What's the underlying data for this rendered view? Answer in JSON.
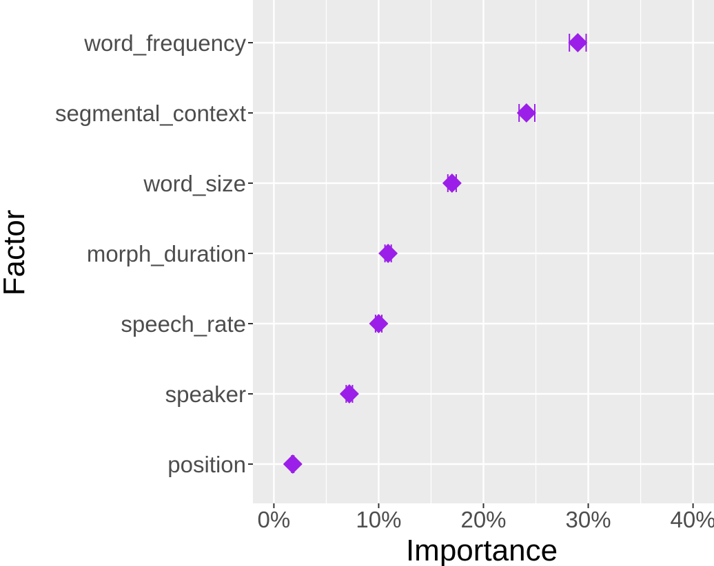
{
  "chart_data": {
    "type": "scatter",
    "title": "",
    "xlabel": "Importance",
    "ylabel": "Factor",
    "xlim": [
      -0.02,
      0.42
    ],
    "x_ticks": [
      0.0,
      0.1,
      0.2,
      0.3,
      0.4
    ],
    "x_tick_labels": [
      "0%",
      "10%",
      "20%",
      "30%",
      "40%"
    ],
    "categories": [
      "word_frequency",
      "segmental_context",
      "word_size",
      "morph_duration",
      "speech_rate",
      "speaker",
      "position"
    ],
    "values": [
      0.29,
      0.241,
      0.17,
      0.109,
      0.1,
      0.072,
      0.018
    ],
    "error_low": [
      0.282,
      0.234,
      0.166,
      0.106,
      0.097,
      0.069,
      0.017
    ],
    "error_high": [
      0.298,
      0.249,
      0.174,
      0.112,
      0.103,
      0.075,
      0.019
    ],
    "marker": "diamond",
    "marker_color": "#9b1fe8",
    "grid": true,
    "panel_color": "#ebebeb",
    "grid_color": "#ffffff"
  }
}
